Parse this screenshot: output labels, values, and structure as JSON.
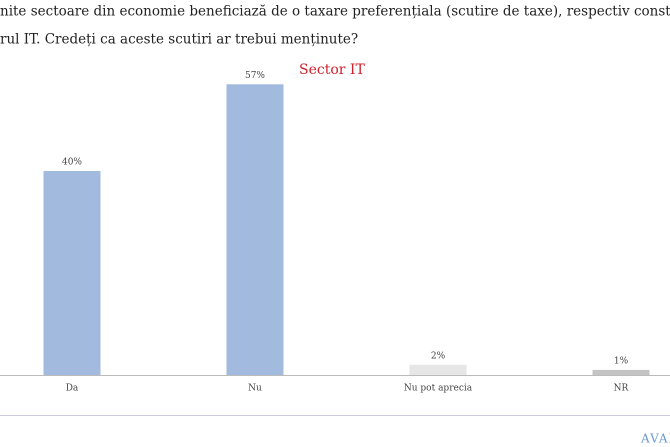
{
  "chart_data": {
    "type": "bar",
    "title_lines": [
      "nite sectoare din economie beneficiază de o taxare preferențiala (scutire de taxe), respectiv construcțiile,",
      "rul IT. Credeți ca aceste scutiri ar trebui menținute?"
    ],
    "subtitle": "Sector IT",
    "categories": [
      "Da",
      "Nu",
      "Nu pot aprecia",
      "NR"
    ],
    "values": [
      40,
      57,
      2,
      1
    ],
    "value_labels": [
      "40%",
      "57%",
      "2%",
      "1%"
    ],
    "colors": [
      "#a3badf",
      "#a3badf",
      "#e6e6e6",
      "#c4c4c4"
    ],
    "logo": "AVAN"
  }
}
